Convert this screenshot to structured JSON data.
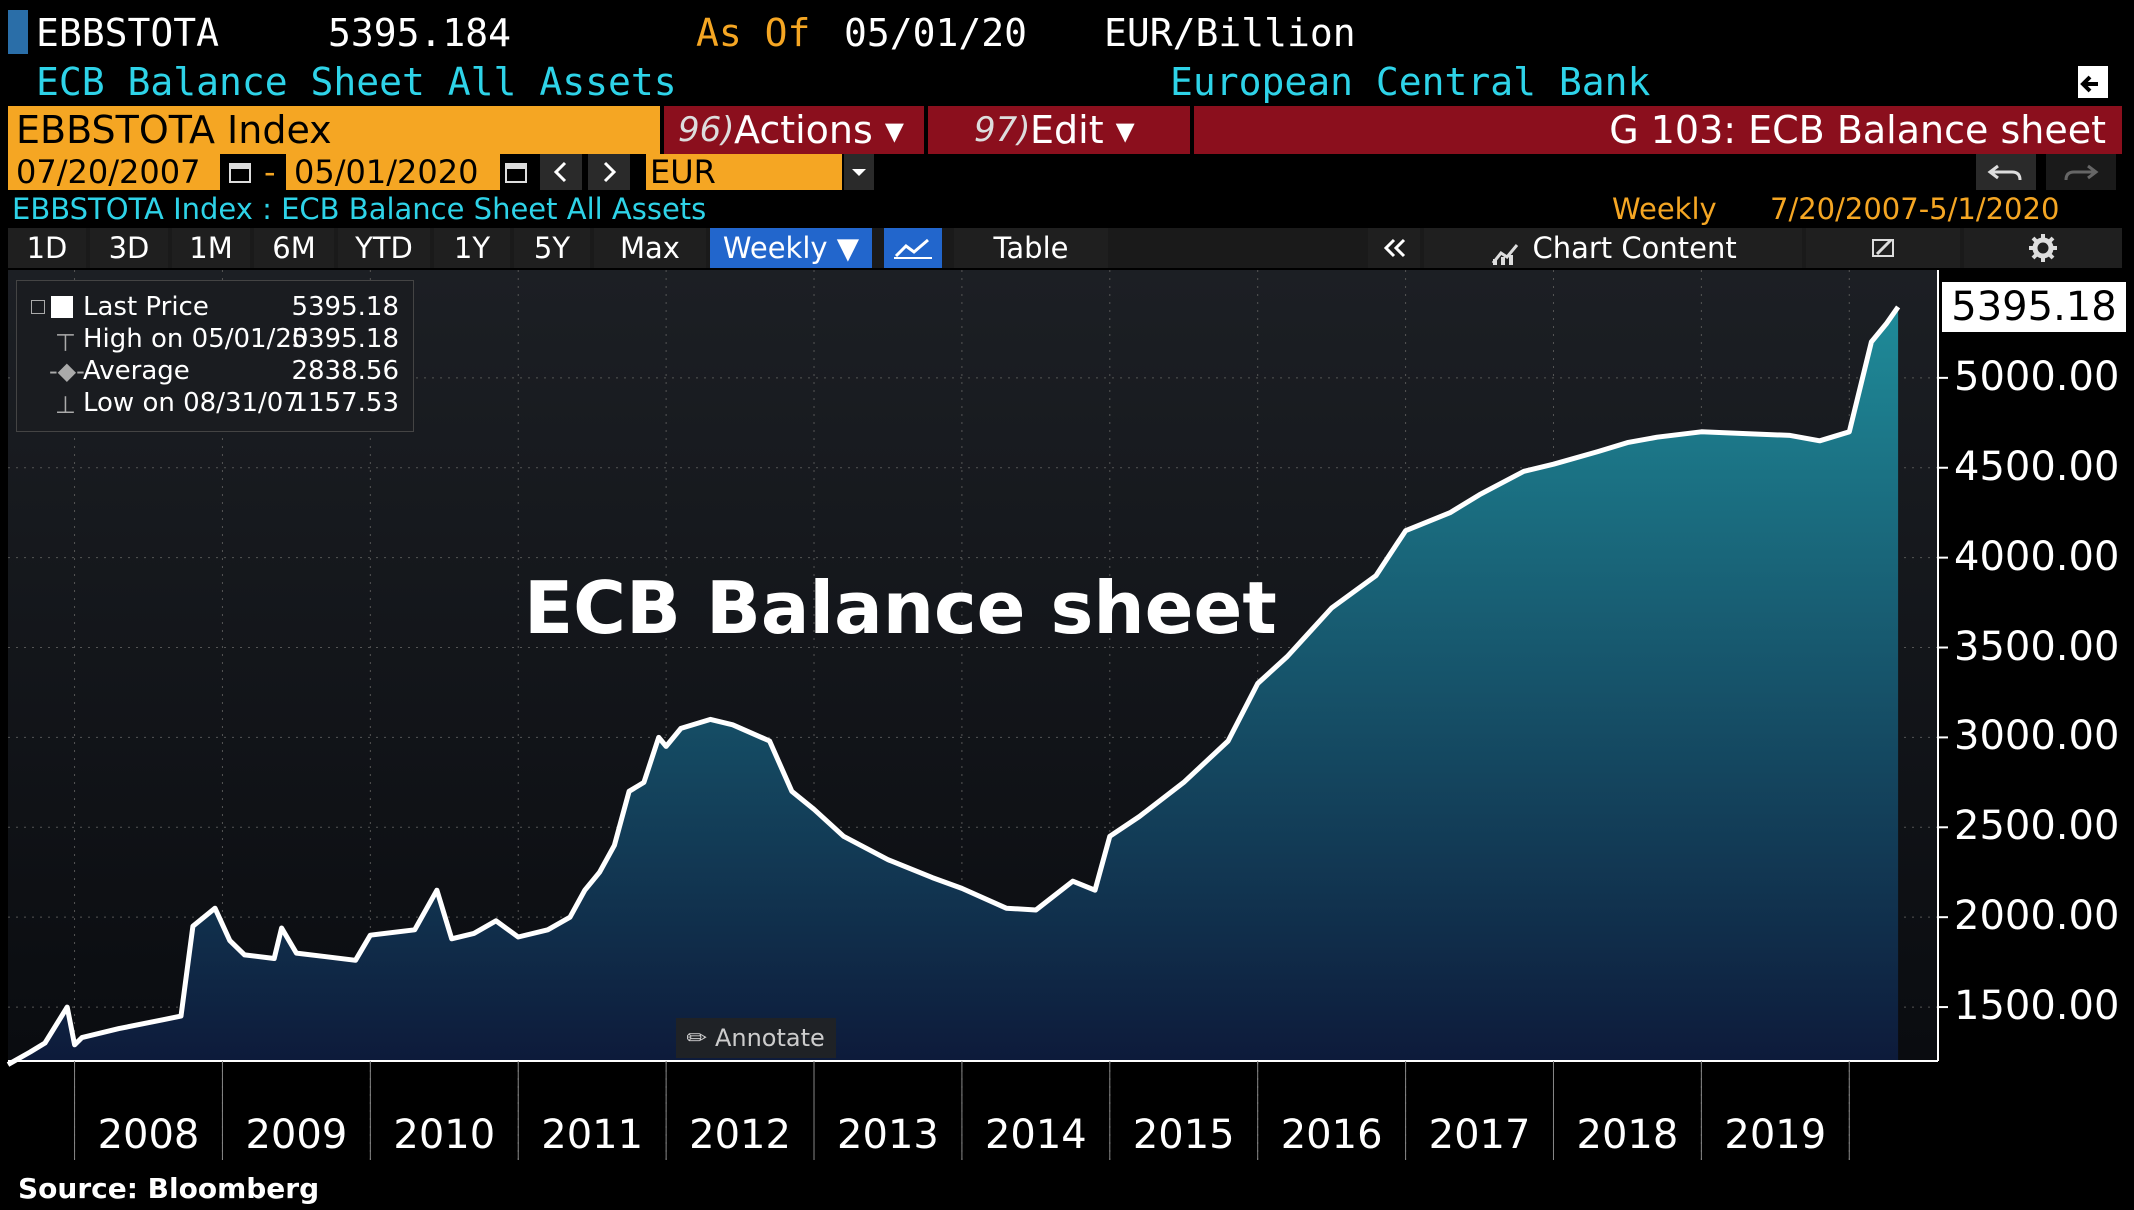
{
  "header": {
    "ticker": "EBBSTOTA",
    "price": "5395.184",
    "as_of_label": "As Of",
    "as_of_date": "05/01/20",
    "unit": "EUR/Billion",
    "description": "ECB Balance Sheet All Assets",
    "source": "European Central Bank"
  },
  "toolbar": {
    "index_field": "EBBSTOTA Index",
    "actions_key": "96)",
    "actions_label": "Actions ▾",
    "edit_key": "97)",
    "edit_label": "Edit ▾",
    "page_title": "G 103: ECB Balance sheet"
  },
  "range": {
    "start": "07/20/2007",
    "sep": "-",
    "end": "05/01/2020",
    "currency": "EUR"
  },
  "subtitle": {
    "left": "EBBSTOTA Index : ECB Balance Sheet All Assets",
    "frequency": "Weekly",
    "span": "7/20/2007-5/1/2020"
  },
  "tabs": {
    "d1": "1D",
    "d3": "3D",
    "m1": "1M",
    "m6": "6M",
    "ytd": "YTD",
    "y1": "1Y",
    "y5": "5Y",
    "max": "Max",
    "weekly": "Weekly ▼",
    "table": "Table",
    "chart_content": "Chart Content"
  },
  "legend": {
    "last_label": "Last Price",
    "last_value": "5395.18",
    "high_label": "High on 05/01/20",
    "high_value": "5395.18",
    "avg_label": "Average",
    "avg_value": "2838.56",
    "low_label": "Low on 08/31/07",
    "low_value": "1157.53"
  },
  "annotate": "Annotate",
  "footer": "Source: Bloomberg",
  "colors": {
    "accent_orange": "#f5a623",
    "cyan": "#2ed3e8",
    "red_bar": "#8b0f1d",
    "area_top": "#1f8b99",
    "area_bottom": "#0d1a3a"
  },
  "chart_data": {
    "type": "area",
    "title": "ECB Balance sheet",
    "last_label": "5395.18",
    "ylim": [
      1200,
      5600
    ],
    "yticks": [
      1500,
      2000,
      2500,
      3000,
      3500,
      4000,
      4500,
      5000
    ],
    "ytick_labels": [
      "1500.00",
      "2000.00",
      "2500.00",
      "3000.00",
      "3500.00",
      "4000.00",
      "4500.00",
      "5000.00"
    ],
    "xlim": [
      2007.55,
      2020.6
    ],
    "x_labels": [
      "2008",
      "2009",
      "2010",
      "2011",
      "2012",
      "2013",
      "2014",
      "2015",
      "2016",
      "2017",
      "2018",
      "2019"
    ],
    "series": [
      {
        "x": [
          2007.55,
          2007.7,
          2007.8,
          2007.95,
          2008.0,
          2008.05,
          2008.3,
          2008.6,
          2008.72,
          2008.8,
          2008.95,
          2009.05,
          2009.15,
          2009.35,
          2009.4,
          2009.5,
          2009.7,
          2009.9,
          2010.0,
          2010.3,
          2010.45,
          2010.55,
          2010.7,
          2010.85,
          2011.0,
          2011.2,
          2011.35,
          2011.45,
          2011.55,
          2011.65,
          2011.75,
          2011.85,
          2011.95,
          2012.0,
          2012.1,
          2012.3,
          2012.45,
          2012.7,
          2012.85,
          2013.0,
          2013.2,
          2013.5,
          2013.8,
          2014.0,
          2014.3,
          2014.5,
          2014.75,
          2014.9,
          2015.0,
          2015.2,
          2015.5,
          2015.8,
          2016.0,
          2016.2,
          2016.5,
          2016.8,
          2017.0,
          2017.3,
          2017.5,
          2017.8,
          2018.0,
          2018.3,
          2018.5,
          2018.7,
          2019.0,
          2019.3,
          2019.6,
          2019.8,
          2020.0,
          2020.15,
          2020.25,
          2020.33
        ],
        "y": [
          1180,
          1250,
          1300,
          1500,
          1290,
          1330,
          1380,
          1430,
          1450,
          1950,
          2050,
          1870,
          1790,
          1770,
          1940,
          1800,
          1780,
          1760,
          1900,
          1930,
          2150,
          1880,
          1910,
          1980,
          1890,
          1930,
          2000,
          2150,
          2250,
          2400,
          2700,
          2750,
          3000,
          2950,
          3050,
          3100,
          3070,
          2980,
          2700,
          2600,
          2450,
          2320,
          2220,
          2160,
          2050,
          2040,
          2200,
          2150,
          2450,
          2560,
          2750,
          2980,
          3300,
          3450,
          3720,
          3900,
          4150,
          4250,
          4350,
          4480,
          4520,
          4590,
          4640,
          4670,
          4700,
          4690,
          4680,
          4650,
          4700,
          5200,
          5300,
          5395
        ]
      }
    ]
  }
}
